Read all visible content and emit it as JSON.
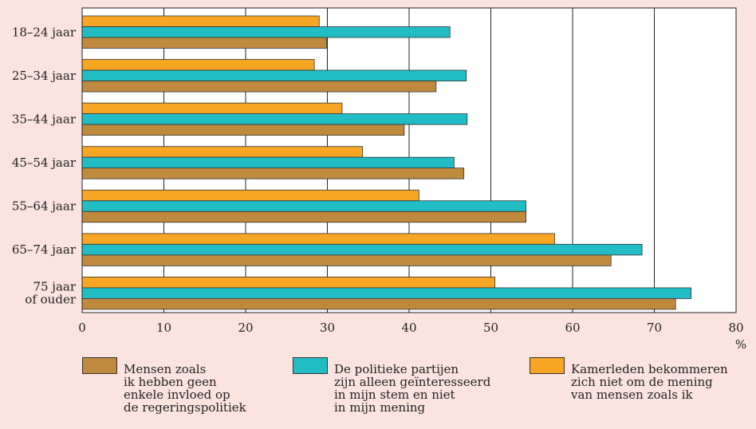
{
  "colors": {
    "background": "#fbe3df",
    "plot_background": "#ffffff",
    "series_brown": "#c08a3e",
    "series_teal": "#22bcc5",
    "series_orange": "#f7a623"
  },
  "chart_data": {
    "type": "bar",
    "orientation": "horizontal",
    "categories": [
      "18–24 jaar",
      "25–34 jaar",
      "35–44 jaar",
      "45–54 jaar",
      "55–64 jaar",
      "65–74 jaar",
      "75 jaar\nof ouder"
    ],
    "series": [
      {
        "name": "Kamerleden bekommeren\nzich niet om de mening\nvan mensen zoals ik",
        "color": "#f7a623",
        "values": [
          29,
          28.4,
          31.8,
          34.3,
          41.2,
          57.8,
          50.5
        ]
      },
      {
        "name": "De politieke partijen\nzijn alleen geïnteresseerd\nin mijn stem en niet\nin mijn mening",
        "color": "#22bcc5",
        "values": [
          45,
          47,
          47.1,
          45.5,
          54.3,
          68.5,
          74.5
        ]
      },
      {
        "name": "Mensen zoals\nik hebben geen\nenkele invloed op\nde regeringspolitiek",
        "color": "#c08a3e",
        "values": [
          29.9,
          43.3,
          39.4,
          46.7,
          54.3,
          64.7,
          72.6
        ]
      }
    ],
    "xlim": [
      0,
      80
    ],
    "xticks": [
      "0",
      "10",
      "20",
      "30",
      "40",
      "50",
      "60",
      "70",
      "80"
    ],
    "xunit": "%",
    "grid": "vertical",
    "legend": [
      {
        "label": "Mensen zoals\nik hebben geen\nenkele invloed op\nde regeringspolitiek",
        "color": "#c08a3e"
      },
      {
        "label": "De politieke partijen\nzijn alleen geïnteresseerd\nin mijn stem en niet\nin mijn mening",
        "color": "#22bcc5"
      },
      {
        "label": "Kamerleden bekommeren\nzich niet om de mening\nvan mensen zoals ik",
        "color": "#f7a623"
      }
    ],
    "legend_position": "bottom"
  }
}
